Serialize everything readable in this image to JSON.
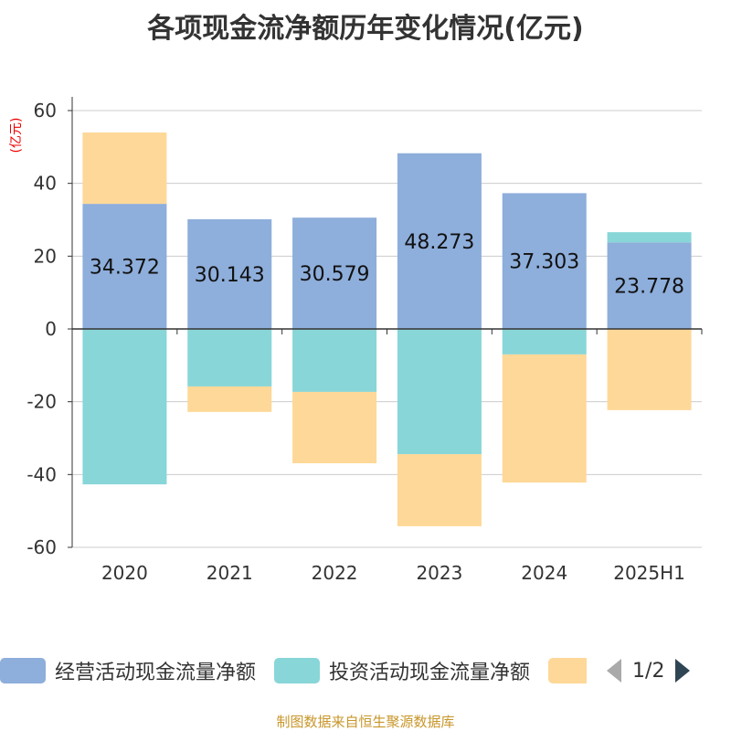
{
  "title": "各项现金流净额历年变化情况(亿元)",
  "chart_data": {
    "type": "bar",
    "stacked": true,
    "title": "各项现金流净额历年变化情况(亿元)",
    "ylabel": "(亿元)",
    "ylim": [
      -60,
      60
    ],
    "yticks": [
      60,
      40,
      20,
      0,
      -20,
      -40,
      -60
    ],
    "grid": true,
    "legend_position": "bottom",
    "categories": [
      "2020",
      "2021",
      "2022",
      "2023",
      "2024",
      "2025H1"
    ],
    "series": [
      {
        "name": "经营活动现金流量净额",
        "color": "#8eaedb",
        "values": [
          34.372,
          30.143,
          30.579,
          48.273,
          37.303,
          23.778
        ],
        "labels": [
          "34.372",
          "30.143",
          "30.579",
          "48.273",
          "37.303",
          "23.778"
        ]
      },
      {
        "name": "投资活动现金流量净额",
        "color": "#88d6d8",
        "values": [
          -42.7,
          -15.8,
          -17.3,
          -34.4,
          -7.0,
          2.8
        ]
      },
      {
        "name": "",
        "color": "#fed898",
        "values": [
          19.6,
          -7.0,
          -19.6,
          -19.8,
          -35.2,
          -22.3
        ]
      }
    ]
  },
  "legend": {
    "items": [
      "经营活动现金流量净额",
      "投资活动现金流量净额",
      ""
    ],
    "page": "1/2"
  },
  "source": "制图数据来自恒生聚源数据库"
}
